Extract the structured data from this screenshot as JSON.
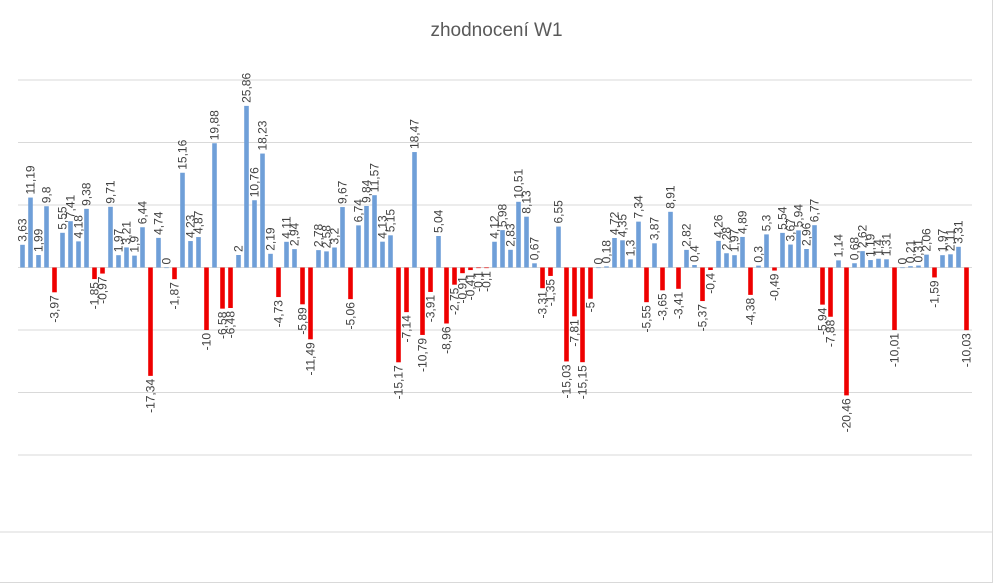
{
  "chart_data": {
    "type": "bar",
    "title": "zhodnocení W1",
    "xlabel": "",
    "ylabel": "",
    "ylim": [
      -30,
      30
    ],
    "grid": true,
    "legend": "none",
    "colors": {
      "positive": "#6f9fd8",
      "negative": "#ee0000"
    },
    "values": [
      3.63,
      11.19,
      1.99,
      9.8,
      -3.97,
      5.55,
      7.41,
      4.18,
      9.38,
      -1.85,
      -0.97,
      9.71,
      1.97,
      3.21,
      1.9,
      6.44,
      -17.34,
      4.74,
      0,
      -1.87,
      15.16,
      4.23,
      4.87,
      -10,
      19.88,
      -6.58,
      -6.48,
      2,
      25.86,
      10.76,
      18.23,
      2.19,
      -4.73,
      4.11,
      2.94,
      -5.89,
      -11.49,
      2.78,
      2.58,
      3.2,
      9.67,
      -5.06,
      6.74,
      9.84,
      11.57,
      4.13,
      5.15,
      -15.17,
      -7.14,
      18.47,
      -10.79,
      -3.91,
      5.04,
      -8.96,
      -2.75,
      -0.91,
      -0.41,
      -0.1,
      -0.1,
      4.12,
      5.98,
      2.83,
      10.51,
      8.13,
      0.67,
      -3.31,
      -1.35,
      6.55,
      -15.03,
      -7.81,
      -15.15,
      -5,
      0,
      0.18,
      4.72,
      4.35,
      1.3,
      7.34,
      -5.55,
      3.87,
      -3.65,
      8.91,
      -3.41,
      2.82,
      0.4,
      -5.37,
      -0.4,
      4.26,
      2.28,
      1.97,
      4.89,
      -4.38,
      0.3,
      5.3,
      -0.49,
      5.54,
      3.67,
      5.94,
      2.96,
      6.77,
      -5.94,
      -7.88,
      1.14,
      -20.46,
      0.68,
      2.62,
      1.19,
      1.4,
      1.31,
      -10.01,
      0,
      0.21,
      0.31,
      2.06,
      -1.59,
      1.97,
      2.11,
      3.31,
      -10.03
    ],
    "labels": [
      "3,63",
      "11,19",
      "1,99",
      "9,8",
      "-3,97",
      "5,55",
      "7,41",
      "4,18",
      "9,38",
      "-1,85",
      "-0,97",
      "9,71",
      "1,97",
      "3,21",
      "1,9",
      "6,44",
      "-17,34",
      "4,74",
      "0",
      "-1,87",
      "15,16",
      "4,23",
      "4,87",
      "-10",
      "19,88",
      "-6,58",
      "-6,48",
      "2",
      "25,86",
      "10,76",
      "18,23",
      "2,19",
      "-4,73",
      "4,11",
      "2,94",
      "-5,89",
      "-11,49",
      "2,78",
      "2,58",
      "3,2",
      "9,67",
      "-5,06",
      "6,74",
      "9,84",
      "11,57",
      "4,13",
      "5,15",
      "-15,17",
      "-7,14",
      "18,47",
      "-10,79",
      "-3,91",
      "5,04",
      "-8,96",
      "-2,75",
      "-0,91",
      "-0,41",
      "-0,1",
      "-0,1",
      "4,12",
      "5,98",
      "2,83",
      "10,51",
      "8,13",
      "0,67",
      "-3,31",
      "-1,35",
      "6,55",
      "-15,03",
      "-7,81",
      "-15,15",
      "-5",
      "0",
      "0,18",
      "4,72",
      "4,35",
      "1,3",
      "7,34",
      "-5,55",
      "3,87",
      "-3,65",
      "8,91",
      "-3,41",
      "2,82",
      "0,4",
      "-5,37",
      "-0,4",
      "4,26",
      "2,28",
      "1,97",
      "4,89",
      "-4,38",
      "0,3",
      "5,3",
      "-0,49",
      "5,54",
      "3,67",
      "5,94",
      "2,96",
      "6,77",
      "-5,94",
      "-7,88",
      "1,14",
      "-20,46",
      "0,68",
      "2,62",
      "1,19",
      "1,4",
      "1,31",
      "-10,01",
      "0",
      "0,21",
      "0,31",
      "2,06",
      "-1,59",
      "1,97",
      "2,11",
      "3,31",
      "-10,03"
    ]
  }
}
